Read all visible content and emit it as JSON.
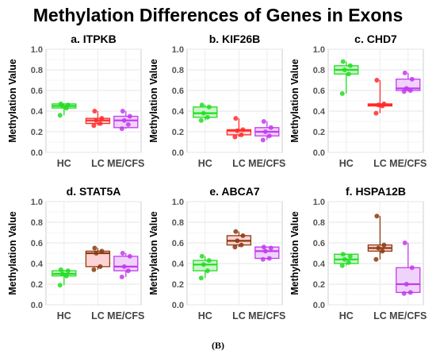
{
  "title": "Methylation Differences of Genes in Exons",
  "caption": "(B)",
  "chart_data": [
    {
      "type": "box",
      "title": "a. ITPKB",
      "ylabel": "Methylation Value",
      "ylim": [
        0,
        1
      ],
      "yticks": [
        "0.0",
        "0.2",
        "0.4",
        "0.6",
        "0.8",
        "1.0"
      ],
      "categories": [
        "HC",
        "LC",
        "ME/CFS"
      ],
      "groups": [
        {
          "name": "HC",
          "color": "#22dd22",
          "fill": "#ccf6cc",
          "q1": 0.43,
          "median": 0.45,
          "q3": 0.47,
          "min": 0.36,
          "max": 0.47,
          "points": [
            0.36,
            0.43,
            0.45,
            0.46,
            0.47
          ]
        },
        {
          "name": "LC",
          "color": "#ff2b2b",
          "fill": "#ffd3d3",
          "q1": 0.28,
          "median": 0.31,
          "q3": 0.33,
          "min": 0.26,
          "max": 0.4,
          "points": [
            0.26,
            0.28,
            0.31,
            0.33,
            0.4
          ]
        },
        {
          "name": "ME/CFS",
          "color": "#c23bf0",
          "fill": "#f0d3fb",
          "q1": 0.24,
          "median": 0.31,
          "q3": 0.35,
          "min": 0.23,
          "max": 0.4,
          "points": [
            0.23,
            0.27,
            0.31,
            0.35,
            0.4
          ]
        }
      ]
    },
    {
      "type": "box",
      "title": "b. KIF26B",
      "ylabel": "Methylation Value",
      "ylim": [
        0,
        1
      ],
      "yticks": [
        "0.0",
        "0.2",
        "0.4",
        "0.6",
        "0.8",
        "1.0"
      ],
      "categories": [
        "HC",
        "LC",
        "ME/CFS"
      ],
      "groups": [
        {
          "name": "HC",
          "color": "#22dd22",
          "fill": "#ccf6cc",
          "q1": 0.34,
          "median": 0.38,
          "q3": 0.44,
          "min": 0.31,
          "max": 0.46,
          "points": [
            0.31,
            0.34,
            0.38,
            0.44,
            0.46
          ]
        },
        {
          "name": "LC",
          "color": "#ff2b2b",
          "fill": "#ffd3d3",
          "q1": 0.17,
          "median": 0.21,
          "q3": 0.22,
          "min": 0.15,
          "max": 0.33,
          "points": [
            0.15,
            0.17,
            0.21,
            0.22,
            0.33
          ]
        },
        {
          "name": "ME/CFS",
          "color": "#c23bf0",
          "fill": "#f0d3fb",
          "q1": 0.16,
          "median": 0.2,
          "q3": 0.24,
          "min": 0.12,
          "max": 0.3,
          "points": [
            0.12,
            0.16,
            0.2,
            0.24,
            0.3
          ]
        }
      ]
    },
    {
      "type": "box",
      "title": "c. CHD7",
      "ylabel": "Methylation Value",
      "ylim": [
        0,
        1
      ],
      "yticks": [
        "0.0",
        "0.2",
        "0.4",
        "0.6",
        "0.8",
        "1.0"
      ],
      "categories": [
        "HC",
        "LC",
        "ME/CFS"
      ],
      "groups": [
        {
          "name": "HC",
          "color": "#22dd22",
          "fill": "#ccf6cc",
          "q1": 0.76,
          "median": 0.8,
          "q3": 0.84,
          "min": 0.57,
          "max": 0.88,
          "points": [
            0.57,
            0.76,
            0.8,
            0.84,
            0.88
          ]
        },
        {
          "name": "LC",
          "color": "#ff2b2b",
          "fill": "#ffd3d3",
          "q1": 0.45,
          "median": 0.46,
          "q3": 0.47,
          "min": 0.38,
          "max": 0.7,
          "points": [
            0.38,
            0.45,
            0.46,
            0.47,
            0.7
          ]
        },
        {
          "name": "ME/CFS",
          "color": "#c23bf0",
          "fill": "#f0d3fb",
          "q1": 0.6,
          "median": 0.62,
          "q3": 0.71,
          "min": 0.59,
          "max": 0.77,
          "points": [
            0.59,
            0.6,
            0.62,
            0.71,
            0.77
          ]
        }
      ]
    },
    {
      "type": "box",
      "title": "d. STAT5A",
      "ylabel": "Methylation Value",
      "ylim": [
        0,
        1
      ],
      "yticks": [
        "0.0",
        "0.2",
        "0.4",
        "0.6",
        "0.8",
        "1.0"
      ],
      "categories": [
        "HC",
        "LC",
        "ME/CFS"
      ],
      "groups": [
        {
          "name": "HC",
          "color": "#22dd22",
          "fill": "#ccf6cc",
          "q1": 0.28,
          "median": 0.3,
          "q3": 0.33,
          "min": 0.19,
          "max": 0.34,
          "points": [
            0.19,
            0.28,
            0.3,
            0.33,
            0.34
          ]
        },
        {
          "name": "LC",
          "color": "#8b3a10",
          "fill": "#ffd3d3",
          "q1": 0.37,
          "median": 0.5,
          "q3": 0.52,
          "min": 0.34,
          "max": 0.55,
          "points": [
            0.34,
            0.37,
            0.5,
            0.52,
            0.55
          ]
        },
        {
          "name": "ME/CFS",
          "color": "#c23bf0",
          "fill": "#f0d3fb",
          "q1": 0.33,
          "median": 0.37,
          "q3": 0.47,
          "min": 0.27,
          "max": 0.5,
          "points": [
            0.27,
            0.33,
            0.37,
            0.47,
            0.5
          ]
        }
      ]
    },
    {
      "type": "box",
      "title": "e. ABCA7",
      "ylabel": "Methylation Value",
      "ylim": [
        0,
        1
      ],
      "yticks": [
        "0.0",
        "0.2",
        "0.4",
        "0.6",
        "0.8",
        "1.0"
      ],
      "categories": [
        "HC",
        "LC",
        "ME/CFS"
      ],
      "groups": [
        {
          "name": "HC",
          "color": "#22dd22",
          "fill": "#ccf6cc",
          "q1": 0.33,
          "median": 0.39,
          "q3": 0.43,
          "min": 0.26,
          "max": 0.47,
          "points": [
            0.26,
            0.33,
            0.39,
            0.43,
            0.47
          ]
        },
        {
          "name": "LC",
          "color": "#8b3a10",
          "fill": "#ffd3d3",
          "q1": 0.58,
          "median": 0.62,
          "q3": 0.67,
          "min": 0.56,
          "max": 0.71,
          "points": [
            0.56,
            0.58,
            0.62,
            0.67,
            0.71
          ]
        },
        {
          "name": "ME/CFS",
          "color": "#c23bf0",
          "fill": "#f0d3fb",
          "q1": 0.45,
          "median": 0.52,
          "q3": 0.56,
          "min": 0.44,
          "max": 0.56,
          "points": [
            0.44,
            0.45,
            0.52,
            0.55,
            0.56
          ]
        }
      ]
    },
    {
      "type": "box",
      "title": "f. HSPA12B",
      "ylabel": "Methylation Value",
      "ylim": [
        0,
        1
      ],
      "yticks": [
        "0.0",
        "0.2",
        "0.4",
        "0.6",
        "0.8",
        "1.0"
      ],
      "categories": [
        "HC",
        "LC",
        "ME/CFS"
      ],
      "groups": [
        {
          "name": "HC",
          "color": "#22dd22",
          "fill": "#ccf6cc",
          "q1": 0.4,
          "median": 0.44,
          "q3": 0.49,
          "min": 0.38,
          "max": 0.49,
          "points": [
            0.38,
            0.41,
            0.44,
            0.47,
            0.49
          ]
        },
        {
          "name": "LC",
          "color": "#8b3a10",
          "fill": "#ffd3d3",
          "q1": 0.52,
          "median": 0.55,
          "q3": 0.58,
          "min": 0.44,
          "max": 0.86,
          "points": [
            0.44,
            0.52,
            0.55,
            0.58,
            0.86
          ]
        },
        {
          "name": "ME/CFS",
          "color": "#c23bf0",
          "fill": "#f0d3fb",
          "q1": 0.12,
          "median": 0.2,
          "q3": 0.36,
          "min": 0.11,
          "max": 0.6,
          "points": [
            0.11,
            0.12,
            0.2,
            0.36,
            0.6
          ]
        }
      ]
    }
  ]
}
